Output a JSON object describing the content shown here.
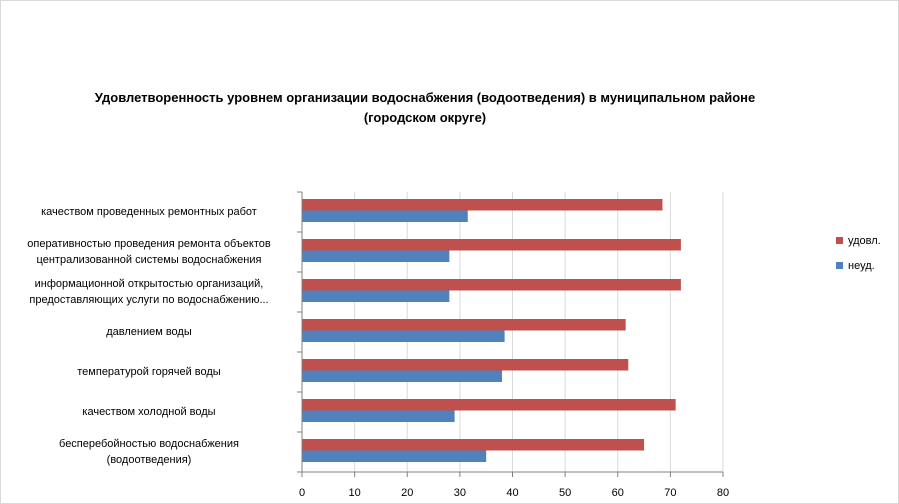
{
  "chart_data": {
    "type": "bar",
    "orientation": "horizontal",
    "title_lines": [
      "Удовлетворенность уровнем организации водоснабжения (водоотведения) в муниципальном районе",
      "(городском округе)"
    ],
    "categories": [
      [
        "качеством  проведенных  ремонтных работ"
      ],
      [
        "оперативностью  проведения  ремонта объектов",
        "централизованной системы водоснабжения"
      ],
      [
        "информационной открытостью организаций,",
        "предоставляющих услуги по водоснабжению..."
      ],
      [
        "давлением  воды"
      ],
      [
        "температурой горячей воды"
      ],
      [
        "качеством  холодной воды"
      ],
      [
        "бесперебойностью  водоснабжения",
        "(водоотведения)"
      ]
    ],
    "series": [
      {
        "name": "удовл.",
        "color": "#c0504d",
        "values": [
          68.5,
          72,
          72,
          61.5,
          62,
          71,
          65
        ]
      },
      {
        "name": "неуд.",
        "color": "#4f81bd",
        "values": [
          31.5,
          28,
          28,
          38.5,
          38,
          29,
          35
        ]
      }
    ],
    "xlim": [
      0,
      80
    ],
    "ticks": [
      "0",
      "10",
      "20",
      "30",
      "40",
      "50",
      "60",
      "70",
      "80"
    ],
    "xlabel": "",
    "ylabel": "",
    "grid": true,
    "legend_position": "right",
    "legend_order": [
      "удовл.",
      "неуд."
    ]
  }
}
